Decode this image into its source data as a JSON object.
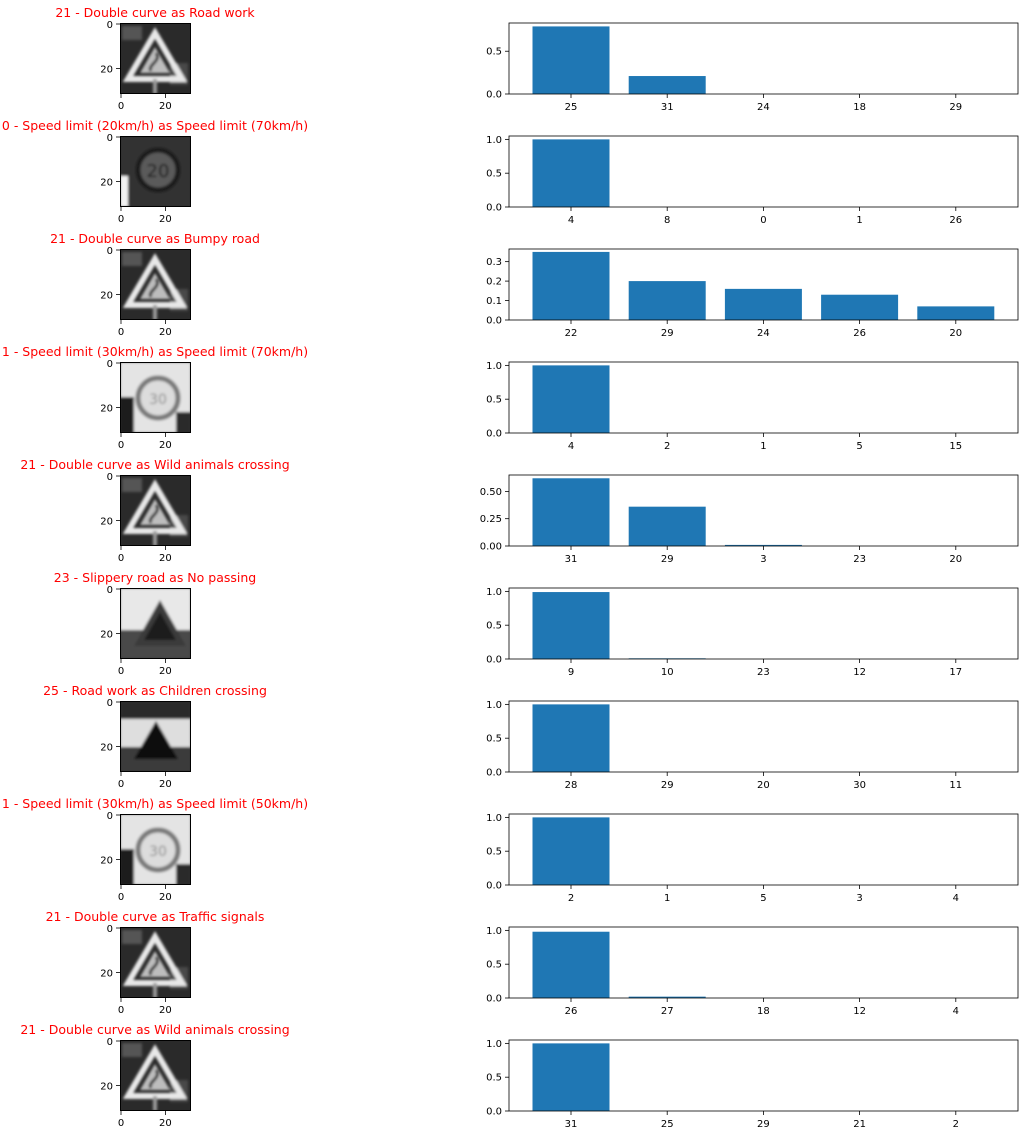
{
  "figure": {
    "title_color": "#ff0000",
    "bar_color": "#1f77b4",
    "image_ticks": {
      "x": [
        "0",
        "20"
      ],
      "y": [
        "0",
        "20"
      ]
    }
  },
  "chart_data": [
    {
      "type": "bar",
      "title": "21 - Double curve as Road work",
      "categories": [
        "25",
        "31",
        "24",
        "18",
        "29"
      ],
      "values": [
        0.79,
        0.21,
        0.0,
        0.0,
        0.0
      ],
      "ylim": [
        0,
        0.83
      ],
      "yticks": [
        "0.0",
        "0.5"
      ],
      "image": "sign-image-double-curve"
    },
    {
      "type": "bar",
      "title": "0 - Speed limit (20km/h) as Speed limit (70km/h)",
      "categories": [
        "4",
        "8",
        "0",
        "1",
        "26"
      ],
      "values": [
        1.0,
        0.0,
        0.0,
        0.0,
        0.0
      ],
      "ylim": [
        0,
        1.05
      ],
      "yticks": [
        "0.0",
        "0.5",
        "1.0"
      ],
      "image": "sign-image-speed-limit-20"
    },
    {
      "type": "bar",
      "title": "21 - Double curve as Bumpy road",
      "categories": [
        "22",
        "29",
        "24",
        "26",
        "20"
      ],
      "values": [
        0.35,
        0.2,
        0.16,
        0.13,
        0.07
      ],
      "ylim": [
        0,
        0.365
      ],
      "yticks": [
        "0.0",
        "0.1",
        "0.2",
        "0.3"
      ],
      "image": "sign-image-double-curve"
    },
    {
      "type": "bar",
      "title": "1 - Speed limit (30km/h) as Speed limit (70km/h)",
      "categories": [
        "4",
        "2",
        "1",
        "5",
        "15"
      ],
      "values": [
        1.0,
        0.0,
        0.0,
        0.0,
        0.0
      ],
      "ylim": [
        0,
        1.05
      ],
      "yticks": [
        "0.0",
        "0.5",
        "1.0"
      ],
      "image": "sign-image-speed-limit-30"
    },
    {
      "type": "bar",
      "title": "21 - Double curve as Wild animals crossing",
      "categories": [
        "31",
        "29",
        "3",
        "23",
        "20"
      ],
      "values": [
        0.62,
        0.36,
        0.01,
        0.0,
        0.0
      ],
      "ylim": [
        0,
        0.65
      ],
      "yticks": [
        "0.00",
        "0.25",
        "0.50"
      ],
      "image": "sign-image-double-curve"
    },
    {
      "type": "bar",
      "title": "23 - Slippery road as No passing",
      "categories": [
        "9",
        "10",
        "23",
        "12",
        "17"
      ],
      "values": [
        0.99,
        0.01,
        0.0,
        0.0,
        0.0
      ],
      "ylim": [
        0,
        1.05
      ],
      "yticks": [
        "0.0",
        "0.5",
        "1.0"
      ],
      "image": "sign-image-slippery-road"
    },
    {
      "type": "bar",
      "title": "25 - Road work as Children crossing",
      "categories": [
        "28",
        "29",
        "20",
        "30",
        "11"
      ],
      "values": [
        1.0,
        0.0,
        0.0,
        0.0,
        0.0
      ],
      "ylim": [
        0,
        1.05
      ],
      "yticks": [
        "0.0",
        "0.5",
        "1.0"
      ],
      "image": "sign-image-road-work"
    },
    {
      "type": "bar",
      "title": "1 - Speed limit (30km/h) as Speed limit (50km/h)",
      "categories": [
        "2",
        "1",
        "5",
        "3",
        "4"
      ],
      "values": [
        1.0,
        0.0,
        0.0,
        0.0,
        0.0
      ],
      "ylim": [
        0,
        1.05
      ],
      "yticks": [
        "0.0",
        "0.5",
        "1.0"
      ],
      "image": "sign-image-speed-limit-30"
    },
    {
      "type": "bar",
      "title": "21 - Double curve as Traffic signals",
      "categories": [
        "26",
        "27",
        "18",
        "12",
        "4"
      ],
      "values": [
        0.98,
        0.02,
        0.0,
        0.0,
        0.0
      ],
      "ylim": [
        0,
        1.05
      ],
      "yticks": [
        "0.0",
        "0.5",
        "1.0"
      ],
      "image": "sign-image-double-curve"
    },
    {
      "type": "bar",
      "title": "21 - Double curve as Wild animals crossing",
      "categories": [
        "31",
        "25",
        "29",
        "21",
        "2"
      ],
      "values": [
        1.0,
        0.0,
        0.0,
        0.0,
        0.0
      ],
      "ylim": [
        0,
        1.05
      ],
      "yticks": [
        "0.0",
        "0.5",
        "1.0"
      ],
      "image": "sign-image-double-curve"
    }
  ]
}
